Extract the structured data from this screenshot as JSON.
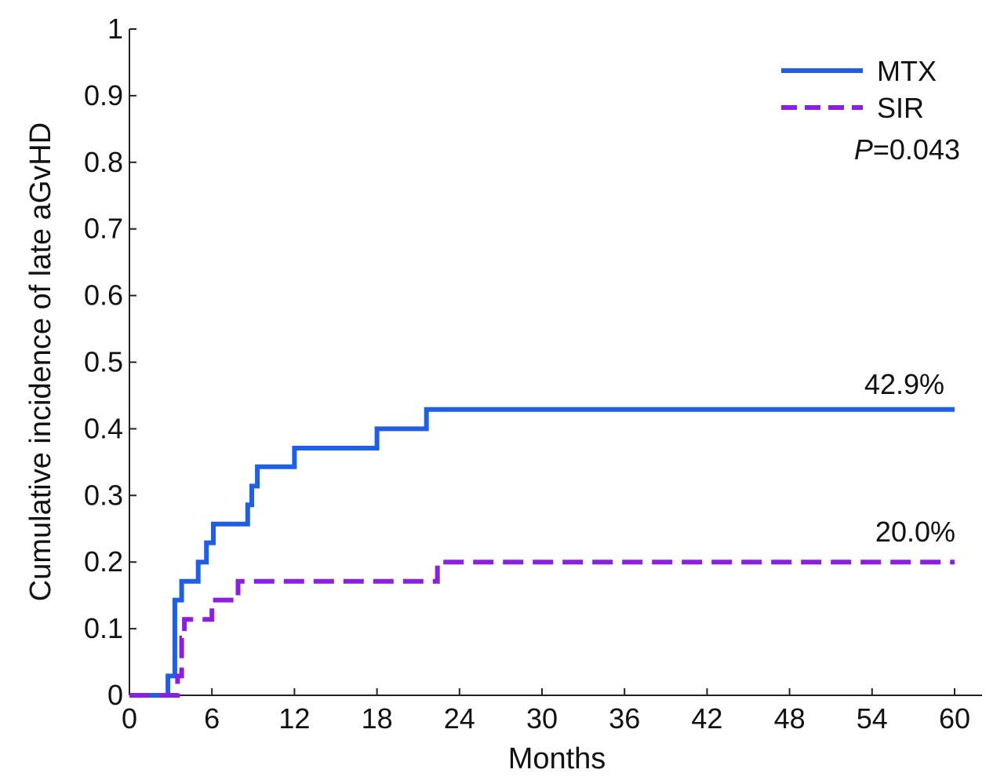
{
  "chart_data": {
    "type": "line",
    "step": true,
    "title": "",
    "xlabel": "Months",
    "ylabel": "Cumulative incidence of late aGvHD",
    "xlim": [
      0,
      60
    ],
    "ylim": [
      0,
      1
    ],
    "xticks": [
      0,
      6,
      12,
      18,
      24,
      30,
      36,
      42,
      48,
      54,
      60
    ],
    "yticks": [
      0,
      0.1,
      0.2,
      0.3,
      0.4,
      0.5,
      0.6,
      0.7,
      0.8,
      0.9,
      1
    ],
    "ytick_labels": [
      "0",
      "0.1",
      "0.2",
      "0.3",
      "0.4",
      "0.5",
      "0.6",
      "0.7",
      "0.8",
      "0.9",
      "1"
    ],
    "legend_position": "top-right",
    "series": [
      {
        "name": "MTX",
        "color": "#1f5fe6",
        "line_style": "solid",
        "end_label": "42.9%",
        "x": [
          0,
          2.8,
          3.3,
          3.8,
          5.0,
          5.6,
          6.1,
          8.6,
          8.9,
          9.3,
          12.0,
          18.0,
          21.6,
          60
        ],
        "y": [
          0,
          0.029,
          0.143,
          0.171,
          0.2,
          0.229,
          0.257,
          0.286,
          0.314,
          0.343,
          0.371,
          0.4,
          0.429,
          0.429
        ]
      },
      {
        "name": "SIR",
        "color": "#8a1fe0",
        "line_style": "dashed",
        "end_label": "20.0%",
        "x": [
          0,
          3.5,
          3.8,
          4.0,
          6.0,
          7.9,
          22.4,
          60
        ],
        "y": [
          0,
          0.029,
          0.086,
          0.114,
          0.143,
          0.171,
          0.2,
          0.2
        ]
      }
    ],
    "annotations": {
      "p_label": "P",
      "p_value": "=0.043"
    }
  }
}
